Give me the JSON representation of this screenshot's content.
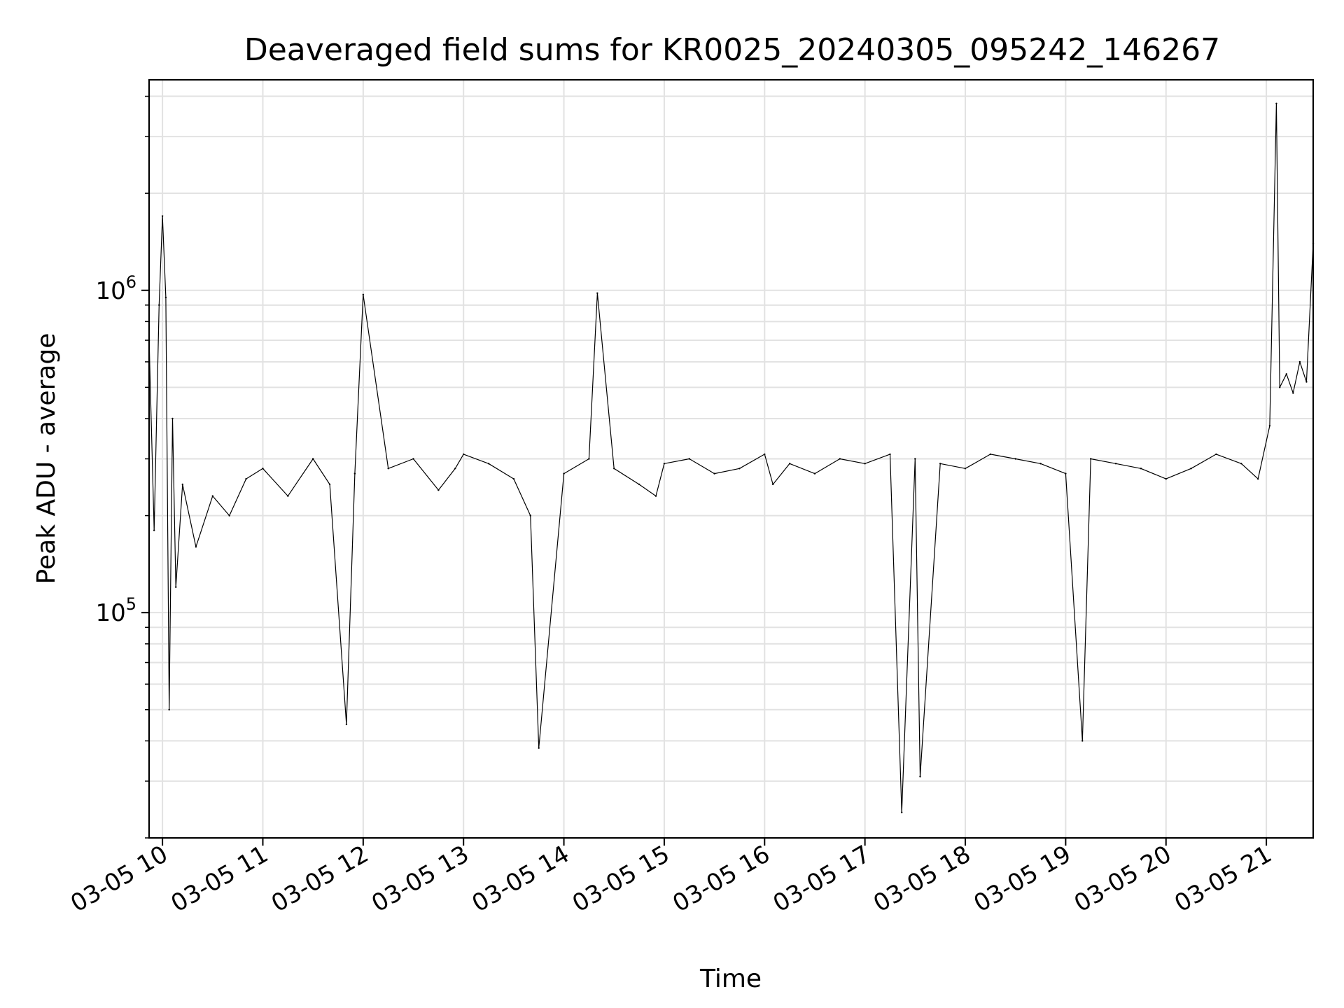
{
  "chart_data": {
    "type": "line",
    "title": "Deaveraged field sums for KR0025_20240305_095242_146267",
    "xlabel": "Time",
    "ylabel": "Peak ADU - average",
    "y_scale": "log",
    "x_range": [
      "2024-03-05 09:52",
      "2024-03-05 21:28"
    ],
    "ylim": [
      20000,
      4500000
    ],
    "x_ticks": [
      {
        "label": "03-05 10",
        "value": "2024-03-05 10:00"
      },
      {
        "label": "03-05 11",
        "value": "2024-03-05 11:00"
      },
      {
        "label": "03-05 12",
        "value": "2024-03-05 12:00"
      },
      {
        "label": "03-05 13",
        "value": "2024-03-05 13:00"
      },
      {
        "label": "03-05 14",
        "value": "2024-03-05 14:00"
      },
      {
        "label": "03-05 15",
        "value": "2024-03-05 15:00"
      },
      {
        "label": "03-05 16",
        "value": "2024-03-05 16:00"
      },
      {
        "label": "03-05 17",
        "value": "2024-03-05 17:00"
      },
      {
        "label": "03-05 18",
        "value": "2024-03-05 18:00"
      },
      {
        "label": "03-05 19",
        "value": "2024-03-05 19:00"
      },
      {
        "label": "03-05 20",
        "value": "2024-03-05 20:00"
      },
      {
        "label": "03-05 21",
        "value": "2024-03-05 21:00"
      }
    ],
    "y_ticks": [
      {
        "base": "10",
        "exp": "5",
        "value": 100000
      },
      {
        "base": "10",
        "exp": "6",
        "value": 1000000
      }
    ],
    "grid": true,
    "legend": "none",
    "line_color": "#000000",
    "series": [
      {
        "x": [
          "2024-03-05 09:52",
          "2024-03-05 09:55",
          "2024-03-05 09:58",
          "2024-03-05 10:00",
          "2024-03-05 10:02",
          "2024-03-05 10:04",
          "2024-03-05 10:06",
          "2024-03-05 10:08",
          "2024-03-05 10:12",
          "2024-03-05 10:20",
          "2024-03-05 10:30",
          "2024-03-05 10:40",
          "2024-03-05 10:50",
          "2024-03-05 11:00",
          "2024-03-05 11:15",
          "2024-03-05 11:30",
          "2024-03-05 11:40",
          "2024-03-05 11:50",
          "2024-03-05 11:55",
          "2024-03-05 12:00",
          "2024-03-05 12:15",
          "2024-03-05 12:30",
          "2024-03-05 12:45",
          "2024-03-05 12:55",
          "2024-03-05 13:00",
          "2024-03-05 13:15",
          "2024-03-05 13:30",
          "2024-03-05 13:40",
          "2024-03-05 13:45",
          "2024-03-05 14:00",
          "2024-03-05 14:15",
          "2024-03-05 14:20",
          "2024-03-05 14:30",
          "2024-03-05 14:45",
          "2024-03-05 14:55",
          "2024-03-05 15:00",
          "2024-03-05 15:15",
          "2024-03-05 15:30",
          "2024-03-05 15:45",
          "2024-03-05 16:00",
          "2024-03-05 16:05",
          "2024-03-05 16:15",
          "2024-03-05 16:30",
          "2024-03-05 16:45",
          "2024-03-05 17:00",
          "2024-03-05 17:15",
          "2024-03-05 17:22",
          "2024-03-05 17:30",
          "2024-03-05 17:33",
          "2024-03-05 17:45",
          "2024-03-05 18:00",
          "2024-03-05 18:15",
          "2024-03-05 18:30",
          "2024-03-05 18:45",
          "2024-03-05 19:00",
          "2024-03-05 19:10",
          "2024-03-05 19:15",
          "2024-03-05 19:30",
          "2024-03-05 19:45",
          "2024-03-05 20:00",
          "2024-03-05 20:15",
          "2024-03-05 20:30",
          "2024-03-05 20:45",
          "2024-03-05 20:55",
          "2024-03-05 21:02",
          "2024-03-05 21:06",
          "2024-03-05 21:08",
          "2024-03-05 21:12",
          "2024-03-05 21:16",
          "2024-03-05 21:20",
          "2024-03-05 21:24",
          "2024-03-05 21:28"
        ],
        "y": [
          700000,
          180000,
          900000,
          1700000,
          950000,
          50000,
          400000,
          120000,
          250000,
          160000,
          230000,
          200000,
          260000,
          280000,
          230000,
          300000,
          250000,
          45000,
          270000,
          970000,
          280000,
          300000,
          240000,
          280000,
          310000,
          290000,
          260000,
          200000,
          38000,
          270000,
          300000,
          980000,
          280000,
          250000,
          230000,
          290000,
          300000,
          270000,
          280000,
          310000,
          250000,
          290000,
          270000,
          300000,
          290000,
          310000,
          24000,
          300000,
          31000,
          290000,
          280000,
          310000,
          300000,
          290000,
          270000,
          40000,
          300000,
          290000,
          280000,
          260000,
          280000,
          310000,
          290000,
          260000,
          380000,
          3800000,
          500000,
          550000,
          480000,
          600000,
          520000,
          1400000
        ]
      }
    ]
  }
}
